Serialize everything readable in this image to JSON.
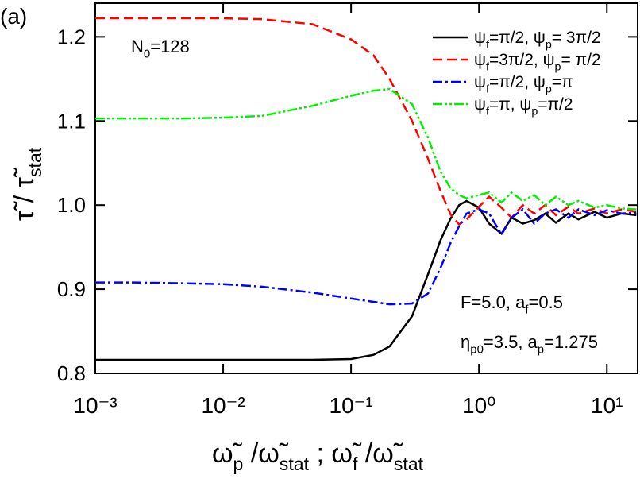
{
  "chart_data": {
    "type": "line",
    "panel_label": "(a)",
    "xlabel": [
      {
        "text": "ω̃"
      },
      {
        "text": "p",
        "sub": true
      },
      {
        "text": " /ω̃"
      },
      {
        "text": "stat",
        "sub": true
      },
      {
        "text": " ;  ω̃"
      },
      {
        "text": "f",
        "sub": true
      },
      {
        "text": " /ω̃"
      },
      {
        "text": "stat",
        "sub": true
      }
    ],
    "ylabel": [
      {
        "text": "τ̃ / τ̃"
      },
      {
        "text": "stat",
        "sub": true
      }
    ],
    "annotations": [
      [
        {
          "text": "N"
        },
        {
          "text": "0",
          "sub": true
        },
        {
          "text": "=128"
        }
      ],
      [
        {
          "text": "F=5.0, a"
        },
        {
          "text": "f",
          "sub": true
        },
        {
          "text": "=0.5"
        }
      ],
      [
        {
          "text": "η"
        },
        {
          "text": "p0",
          "sub": true
        },
        {
          "text": "=3.5, a"
        },
        {
          "text": "p",
          "sub": true
        },
        {
          "text": "=1.275"
        }
      ]
    ],
    "xscale": "log",
    "xlim": [
      0.001,
      17.4
    ],
    "xticks": [
      {
        "value": 0.001,
        "label": "10⁻³"
      },
      {
        "value": 0.01,
        "label": "10⁻²"
      },
      {
        "value": 0.1,
        "label": "10⁻¹"
      },
      {
        "value": 1,
        "label": "10⁰"
      },
      {
        "value": 10,
        "label": "10¹"
      }
    ],
    "ylim": [
      0.8,
      1.24
    ],
    "yticks": [
      0.8,
      0.9,
      {
        "value": 1,
        "label": "1.0"
      },
      1.1,
      1.2
    ],
    "legend": "top-right",
    "x": [
      0.001,
      0.002,
      0.005,
      0.01,
      0.02,
      0.05,
      0.1,
      0.15,
      0.2,
      0.3,
      0.4,
      0.5,
      0.6,
      0.7,
      0.8,
      1.0,
      1.2,
      1.5,
      1.8,
      2.2,
      2.7,
      3.3,
      4,
      5,
      6,
      8,
      10,
      13,
      17
    ],
    "series": [
      {
        "name": [
          {
            "text": "ψ"
          },
          {
            "text": "f",
            "sub": true
          },
          {
            "text": "=π/2, ψ"
          },
          {
            "text": "p",
            "sub": true
          },
          {
            "text": "= 3π/2"
          }
        ],
        "color": "#000000",
        "style": "solid",
        "values": [
          0.816,
          0.816,
          0.816,
          0.816,
          0.816,
          0.816,
          0.817,
          0.822,
          0.832,
          0.868,
          0.918,
          0.958,
          0.984,
          1.0,
          1.005,
          0.997,
          0.978,
          0.966,
          0.985,
          0.978,
          0.982,
          0.99,
          0.979,
          0.99,
          0.983,
          0.992,
          0.985,
          0.99,
          0.988
        ]
      },
      {
        "name": [
          {
            "text": "ψ"
          },
          {
            "text": "f",
            "sub": true
          },
          {
            "text": "=3π/2, ψ"
          },
          {
            "text": "p",
            "sub": true
          },
          {
            "text": "= π/2"
          }
        ],
        "color": "#ff0000",
        "style": "dashed",
        "values": [
          1.222,
          1.222,
          1.222,
          1.222,
          1.221,
          1.215,
          1.197,
          1.178,
          1.15,
          1.1,
          1.055,
          1.017,
          0.989,
          0.977,
          0.983,
          0.998,
          1.01,
          0.997,
          0.985,
          1.0,
          0.99,
          1.0,
          0.988,
          0.998,
          0.99,
          0.996,
          0.99,
          0.995,
          0.992
        ]
      },
      {
        "name": [
          {
            "text": "ψ"
          },
          {
            "text": "f",
            "sub": true
          },
          {
            "text": "=π/2, ψ"
          },
          {
            "text": "p",
            "sub": true
          },
          {
            "text": "=π"
          }
        ],
        "color": "#0000ff",
        "style": "dashdot",
        "values": [
          0.908,
          0.908,
          0.907,
          0.906,
          0.903,
          0.896,
          0.889,
          0.885,
          0.882,
          0.883,
          0.895,
          0.925,
          0.955,
          0.975,
          0.99,
          0.995,
          0.99,
          0.965,
          0.985,
          0.995,
          0.978,
          0.99,
          0.995,
          0.985,
          0.995,
          0.988,
          0.994,
          0.99,
          0.991
        ]
      },
      {
        "name": [
          {
            "text": "ψ"
          },
          {
            "text": "f",
            "sub": true
          },
          {
            "text": "=π, ψ"
          },
          {
            "text": "p",
            "sub": true
          },
          {
            "text": "=π/2"
          }
        ],
        "color": "#00ee00",
        "style": "dashdotdot",
        "values": [
          1.103,
          1.103,
          1.103,
          1.104,
          1.106,
          1.118,
          1.13,
          1.136,
          1.138,
          1.12,
          1.08,
          1.04,
          1.02,
          1.012,
          1.008,
          1.012,
          1.015,
          1.003,
          1.015,
          1.005,
          1.012,
          1.0,
          1.01,
          1.0,
          1.005,
          0.997,
          1.0,
          0.996,
          0.995
        ]
      }
    ]
  }
}
